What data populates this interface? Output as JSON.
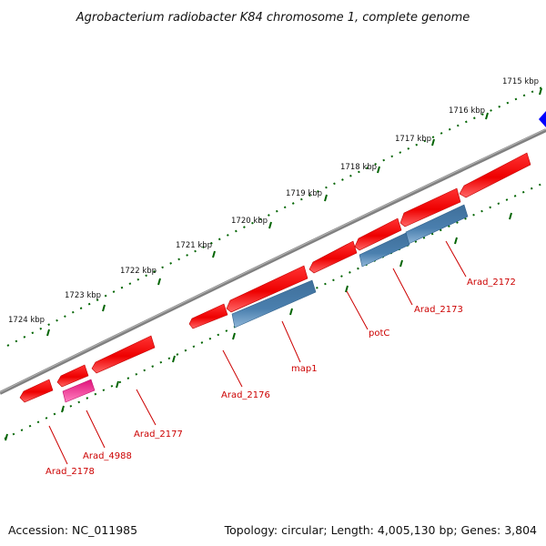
{
  "title": "Agrobacterium radiobacter K84 chromosome 1, complete genome",
  "footer": {
    "accession": "Accession: NC_011985",
    "summary": "Topology: circular; Length: 4,005,130 bp; Genes: 3,804"
  },
  "kbp_labels": [
    "1715 kbp",
    "1716 kbp",
    "1717 kbp",
    "1718 kbp",
    "1719 kbp",
    "1720 kbp",
    "1721 kbp",
    "1722 kbp",
    "1723 kbp",
    "1724 kbp"
  ],
  "gene_labels": [
    "Arad_2172",
    "Arad_2173",
    "potC",
    "map1",
    "Arad_2176",
    "Arad_2177",
    "Arad_4988",
    "Arad_2178"
  ],
  "colors": {
    "cds_forward": "#ff0000",
    "cds_reverse": "#4682b4",
    "misc_feature": "#ff1493",
    "other_feature": "#0000ff",
    "backbone": "#808080",
    "ruler_ticks": "#006400",
    "label_text": "#cc0000"
  }
}
